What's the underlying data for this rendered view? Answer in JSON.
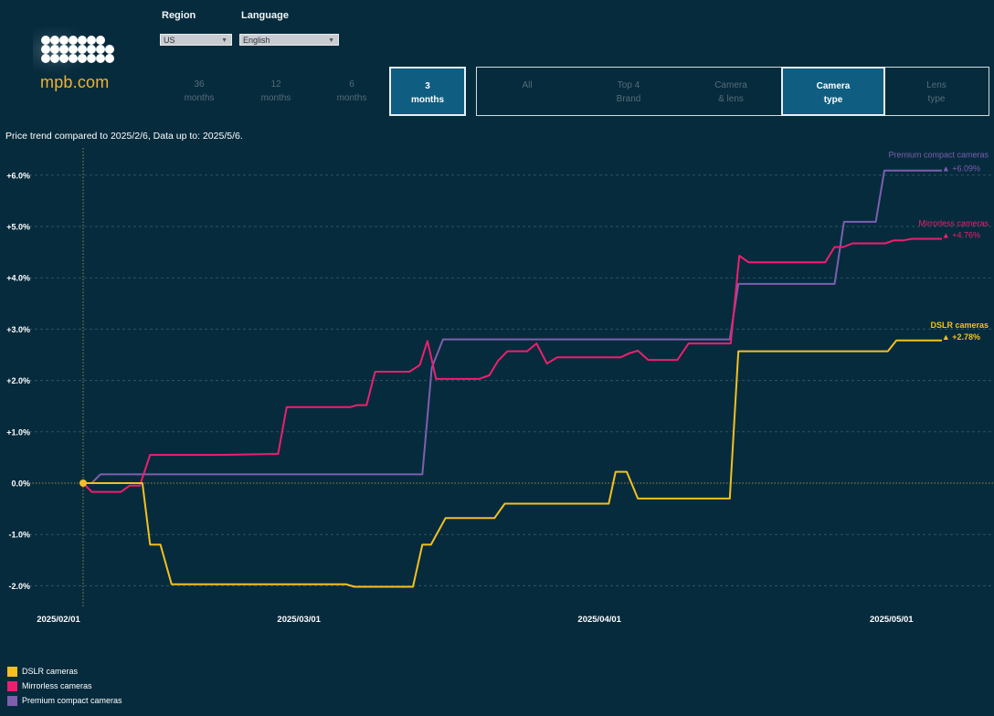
{
  "brand": {
    "logo_text": "mpb.com"
  },
  "filters": {
    "region": {
      "label": "Region",
      "value": "US"
    },
    "language": {
      "label": "Language",
      "value": "English"
    }
  },
  "periods": [
    {
      "line1": "36",
      "line2": "months",
      "active": false
    },
    {
      "line1": "12",
      "line2": "months",
      "active": false
    },
    {
      "line1": "6",
      "line2": "months",
      "active": false
    },
    {
      "line1": "3",
      "line2": "months",
      "active": true
    }
  ],
  "categories": [
    {
      "line1": "All",
      "line2": "",
      "active": false
    },
    {
      "line1": "Top 4",
      "line2": "Brand",
      "active": false
    },
    {
      "line1": "Camera",
      "line2": "& lens",
      "active": false
    },
    {
      "line1": "Camera",
      "line2": "type",
      "active": true
    },
    {
      "line1": "Lens",
      "line2": "type",
      "active": false
    }
  ],
  "subtitle": "Price trend compared to 2025/2/6, Data up to: 2025/5/6.",
  "colors": {
    "dslr": "#f5c020",
    "mirrorless": "#ee1f6e",
    "premium": "#7d5fae",
    "grid": "#2f5364",
    "axis_text": "#ffffff"
  },
  "legend": [
    {
      "label": "DSLR cameras",
      "color": "#f5c020"
    },
    {
      "label": "Mirrorless cameras",
      "color": "#ee1f6e"
    },
    {
      "label": "Premium compact cameras",
      "color": "#7d5fae"
    }
  ],
  "chart_data": {
    "type": "line",
    "title": "Price trend compared to 2025/2/6, Data up to: 2025/5/6.",
    "xlabel": "",
    "ylabel": "",
    "x_domain": [
      0,
      100
    ],
    "ylim": [
      -2.3,
      6.5
    ],
    "y_ticks": [
      {
        "value": 6,
        "label": "+6.0%"
      },
      {
        "value": 5,
        "label": "+5.0%"
      },
      {
        "value": 4,
        "label": "+4.0%"
      },
      {
        "value": 3,
        "label": "+3.0%"
      },
      {
        "value": 2,
        "label": "+2.0%"
      },
      {
        "value": 1,
        "label": "+1.0%"
      },
      {
        "value": 0,
        "label": "0.0%"
      },
      {
        "value": -1,
        "label": "-1.0%"
      },
      {
        "value": -2,
        "label": "-2.0%"
      }
    ],
    "x_ticks": [
      {
        "value": 0,
        "label": "2025/02/01"
      },
      {
        "value": 28,
        "label": "2025/03/01"
      },
      {
        "value": 63,
        "label": "2025/04/01"
      },
      {
        "value": 97,
        "label": "2025/05/01"
      }
    ],
    "reference_x": 0,
    "grid": true,
    "series": [
      {
        "name": "DSLR cameras",
        "key": "dslr",
        "color": "#f5c020",
        "end_label": "DSLR cameras",
        "end_value": "▲ +2.78%",
        "points": [
          [
            0,
            0
          ],
          [
            6.9,
            0
          ],
          [
            7.8,
            -1.2
          ],
          [
            9,
            -1.2
          ],
          [
            10.3,
            -1.97
          ],
          [
            30.6,
            -1.97
          ],
          [
            31.6,
            -2.02
          ],
          [
            38.4,
            -2.02
          ],
          [
            39.5,
            -1.2
          ],
          [
            40.5,
            -1.2
          ],
          [
            42.2,
            -0.68
          ],
          [
            47.9,
            -0.68
          ],
          [
            49.1,
            -0.4
          ],
          [
            61.2,
            -0.4
          ],
          [
            62,
            0.22
          ],
          [
            63.3,
            0.22
          ],
          [
            64.6,
            -0.3
          ],
          [
            75.3,
            -0.3
          ],
          [
            76.3,
            2.57
          ],
          [
            93.7,
            2.57
          ],
          [
            94.7,
            2.78
          ],
          [
            100,
            2.78
          ]
        ]
      },
      {
        "name": "Mirrorless cameras",
        "key": "mirrorless",
        "color": "#ee1f6e",
        "end_label": "Mirrorless cameras",
        "end_value": "▲ +4.76%",
        "points": [
          [
            0,
            0
          ],
          [
            1,
            -0.17
          ],
          [
            4.4,
            -0.17
          ],
          [
            5.4,
            -0.05
          ],
          [
            6.6,
            -0.05
          ],
          [
            7.8,
            0.55
          ],
          [
            15.6,
            0.55
          ],
          [
            22.7,
            0.57
          ],
          [
            23.7,
            1.48
          ],
          [
            31.1,
            1.48
          ],
          [
            31.9,
            1.52
          ],
          [
            33,
            1.52
          ],
          [
            34,
            2.17
          ],
          [
            38,
            2.17
          ],
          [
            39.2,
            2.3
          ],
          [
            40.1,
            2.77
          ],
          [
            41.1,
            2.03
          ],
          [
            46.1,
            2.03
          ],
          [
            47.3,
            2.1
          ],
          [
            48.3,
            2.38
          ],
          [
            49.4,
            2.57
          ],
          [
            51.7,
            2.57
          ],
          [
            52.8,
            2.72
          ],
          [
            54,
            2.33
          ],
          [
            55.2,
            2.45
          ],
          [
            61.5,
            2.45
          ],
          [
            62.6,
            2.45
          ],
          [
            63.6,
            2.53
          ],
          [
            64.6,
            2.58
          ],
          [
            65.8,
            2.4
          ],
          [
            69.2,
            2.4
          ],
          [
            70.5,
            2.72
          ],
          [
            75.4,
            2.72
          ],
          [
            76.4,
            4.43
          ],
          [
            77.5,
            4.3
          ],
          [
            86.4,
            4.3
          ],
          [
            87.5,
            4.6
          ],
          [
            88.5,
            4.6
          ],
          [
            89.6,
            4.67
          ],
          [
            93.4,
            4.67
          ],
          [
            94.4,
            4.73
          ],
          [
            95.5,
            4.73
          ],
          [
            96.5,
            4.76
          ],
          [
            100,
            4.76
          ]
        ]
      },
      {
        "name": "Premium compact cameras",
        "key": "premium",
        "color": "#7d5fae",
        "end_label": "Premium compact cameras",
        "end_value": "▲ +6.09%",
        "points": [
          [
            0,
            0
          ],
          [
            1,
            0
          ],
          [
            2,
            0.17
          ],
          [
            39.5,
            0.17
          ],
          [
            40.6,
            2.25
          ],
          [
            41.9,
            2.8
          ],
          [
            75.3,
            2.8
          ],
          [
            76.3,
            3.88
          ],
          [
            87.5,
            3.88
          ],
          [
            88.6,
            5.09
          ],
          [
            92.3,
            5.09
          ],
          [
            93.3,
            6.09
          ],
          [
            100,
            6.09
          ]
        ]
      }
    ]
  }
}
